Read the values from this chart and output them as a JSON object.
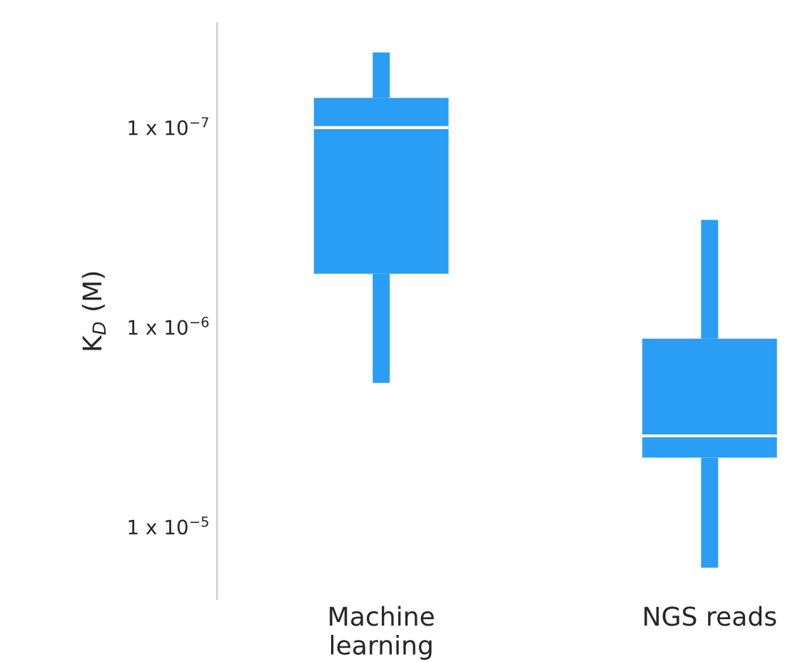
{
  "chart_data": {
    "type": "box",
    "ylabel": "K$_{D}$ (M)",
    "categories": [
      "Machine\nlearning",
      "NGS reads"
    ],
    "series": [
      {
        "color": "#2a9df4",
        "boxes": [
          {
            "low": 1.9e-06,
            "q1": 5.4e-07,
            "median": 1e-07,
            "q3": 7.1e-08,
            "high": 4.2e-08
          },
          {
            "low": 1.6e-05,
            "q1": 4.5e-06,
            "median": 3.5e-06,
            "q3": 1.14e-06,
            "high": 2.9e-07
          }
        ]
      }
    ],
    "log": "y",
    "ylim": [
      2.3e-05,
      3e-08
    ],
    "yticks": [
      {
        "value": 1e-07,
        "label": "1 x 10$^{−7}$"
      },
      {
        "value": 1e-06,
        "label": "1 x 10$^{−6}$"
      },
      {
        "value": 1e-05,
        "label": "1 x 10$^{−5}$"
      }
    ]
  }
}
